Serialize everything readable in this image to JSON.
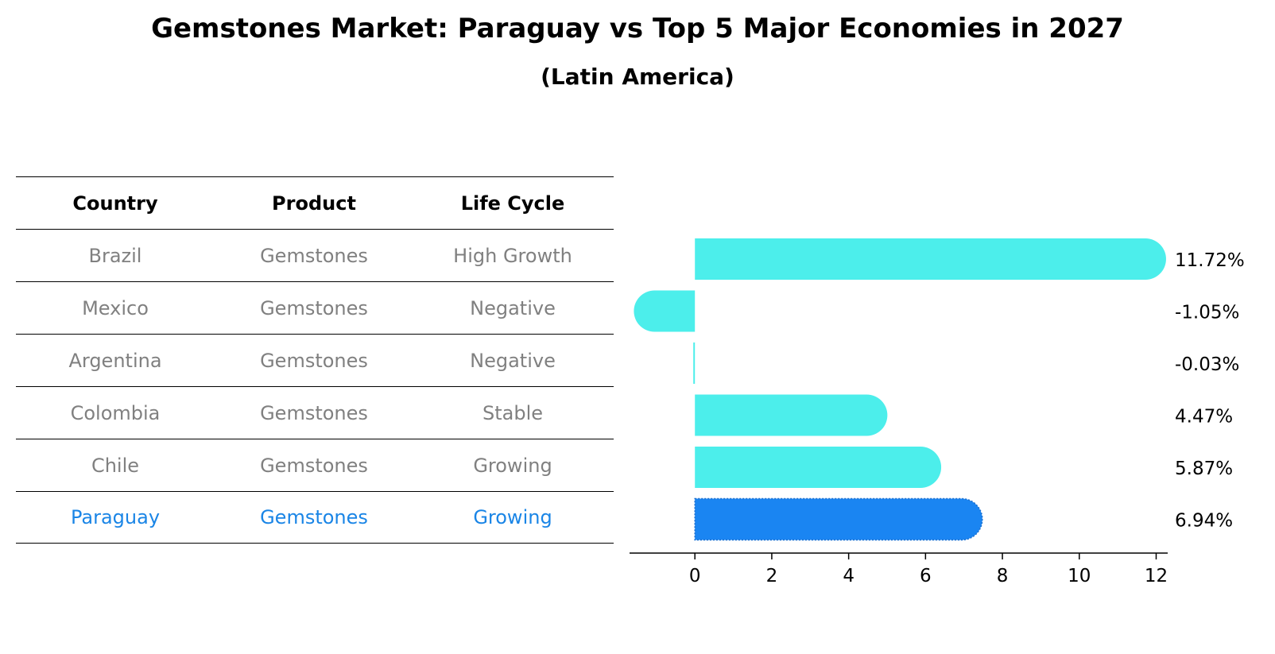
{
  "title": "Gemstones Market: Paraguay vs Top 5 Major Economies in 2027",
  "subtitle": "(Latin America)",
  "colors": {
    "bar": "#4ceeeb",
    "highlight": "#1a85f2",
    "table_text": "#808080",
    "table_highlight_text": "#1a85e6"
  },
  "table": {
    "headers": [
      "Country",
      "Product",
      "Life Cycle"
    ],
    "rows": [
      [
        "Brazil",
        "Gemstones",
        "High Growth"
      ],
      [
        "Mexico",
        "Gemstones",
        "Negative"
      ],
      [
        "Argentina",
        "Gemstones",
        "Negative"
      ],
      [
        "Colombia",
        "Gemstones",
        "Stable"
      ],
      [
        "Chile",
        "Gemstones",
        "Growing"
      ],
      [
        "Paraguay",
        "Gemstones",
        "Growing"
      ]
    ]
  },
  "chart_data": {
    "type": "bar",
    "orientation": "horizontal",
    "categories": [
      "Brazil",
      "Mexico",
      "Argentina",
      "Colombia",
      "Chile",
      "Paraguay"
    ],
    "values": [
      11.72,
      -1.05,
      -0.03,
      4.47,
      5.87,
      6.94
    ],
    "labels": [
      "11.72%",
      "-1.05%",
      "-0.03%",
      "4.47%",
      "5.87%",
      "6.94%"
    ],
    "highlight": "Paraguay",
    "xlim": [
      -1.7,
      12.3
    ],
    "xticks": [
      0,
      2,
      4,
      6,
      8,
      10,
      12
    ],
    "grid": false
  }
}
